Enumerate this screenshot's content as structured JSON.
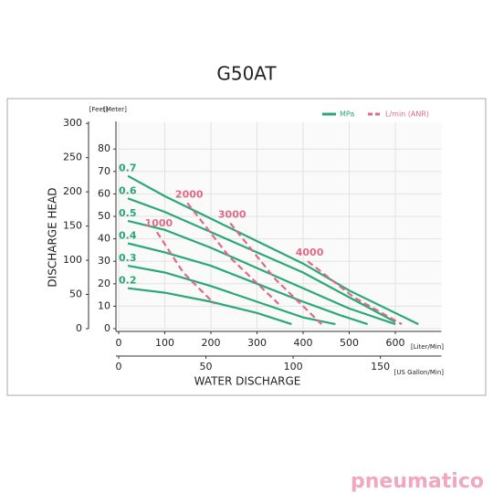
{
  "chart_data": {
    "type": "line",
    "title": "G50AT",
    "xlabel": "WATER DISCHARGE",
    "ylabel": "DISCHARGE HEAD",
    "xunit": "[Liter/Min]",
    "x2unit": "[US Gallon/Min]",
    "yunit": "[Meter]",
    "y2unit": "[Feet]",
    "xlim": [
      0,
      700
    ],
    "xticks": [
      0,
      100,
      200,
      300,
      400,
      500,
      600
    ],
    "x2lim": [
      0,
      185
    ],
    "x2ticks": [
      0,
      50,
      100,
      150
    ],
    "ylim": [
      0,
      92
    ],
    "yticks": [
      0,
      10,
      20,
      30,
      40,
      50,
      60,
      70,
      80
    ],
    "y2lim": [
      0,
      302
    ],
    "y2ticks": [
      0,
      50,
      100,
      150,
      200,
      250,
      300
    ],
    "grid": true,
    "legend": [
      {
        "name": "MPa",
        "color": "#2aa878",
        "dashed": false
      },
      {
        "name": "L/min (ANR)",
        "color": "#e06a86",
        "dashed": true
      }
    ],
    "series": [
      {
        "name": "0.7",
        "color": "#2aa878",
        "dashed": false,
        "x": [
          20,
          100,
          200,
          300,
          400,
          500,
          650
        ],
        "values": [
          68,
          59,
          49,
          39,
          29,
          17,
          2
        ]
      },
      {
        "name": "0.6",
        "color": "#2aa878",
        "dashed": false,
        "x": [
          20,
          100,
          200,
          300,
          400,
          500,
          600
        ],
        "values": [
          58,
          52,
          43,
          34,
          25,
          14,
          3
        ]
      },
      {
        "name": "0.5",
        "color": "#2aa878",
        "dashed": false,
        "x": [
          20,
          100,
          200,
          300,
          400,
          500,
          600
        ],
        "values": [
          48,
          44,
          36,
          27,
          18,
          9,
          2
        ]
      },
      {
        "name": "0.4",
        "color": "#2aa878",
        "dashed": false,
        "x": [
          20,
          100,
          200,
          300,
          400,
          480,
          540
        ],
        "values": [
          38,
          34,
          28,
          20,
          12,
          6,
          2
        ]
      },
      {
        "name": "0.3",
        "color": "#2aa878",
        "dashed": false,
        "x": [
          20,
          100,
          200,
          300,
          400,
          470
        ],
        "values": [
          28,
          25,
          19,
          12,
          5,
          2
        ]
      },
      {
        "name": "0.2",
        "color": "#2aa878",
        "dashed": false,
        "x": [
          20,
          100,
          200,
          300,
          375
        ],
        "values": [
          18,
          16,
          12,
          7,
          2
        ]
      },
      {
        "name": "1000",
        "color": "#e06a86",
        "dashed": true,
        "x": [
          83,
          140,
          208
        ],
        "values": [
          43,
          25,
          11
        ]
      },
      {
        "name": "2000",
        "color": "#e06a86",
        "dashed": true,
        "x": [
          149,
          240,
          347
        ],
        "values": [
          56,
          32,
          11
        ]
      },
      {
        "name": "3000",
        "color": "#e06a86",
        "dashed": true,
        "x": [
          242,
          340,
          440
        ],
        "values": [
          47,
          22,
          2
        ]
      },
      {
        "name": "4000",
        "color": "#e06a86",
        "dashed": true,
        "x": [
          410,
          510,
          614
        ],
        "values": [
          30,
          14,
          2
        ]
      }
    ],
    "brand": "pneumatico"
  }
}
